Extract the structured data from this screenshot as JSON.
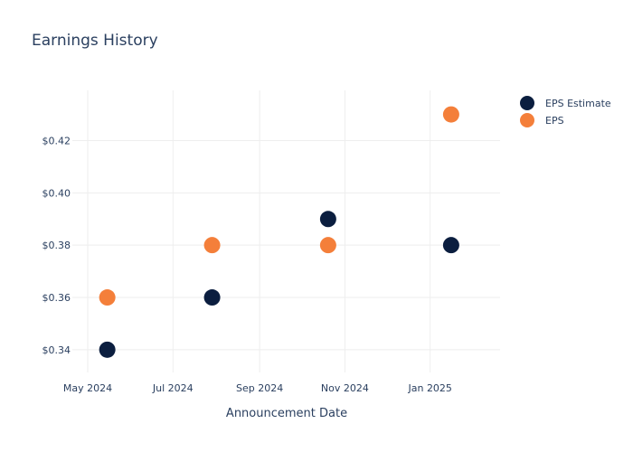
{
  "chart_data": {
    "type": "scatter",
    "title": "Earnings History",
    "xlabel": "Announcement Date",
    "ylabel": "",
    "x_ticks": [
      {
        "date": "2024-05-01",
        "label": "May 2024"
      },
      {
        "date": "2024-07-01",
        "label": "Jul 2024"
      },
      {
        "date": "2024-09-01",
        "label": "Sep 2024"
      },
      {
        "date": "2024-11-01",
        "label": "Nov 2024"
      },
      {
        "date": "2025-01-01",
        "label": "Jan 2025"
      }
    ],
    "y_ticks": [
      {
        "value": 0.34,
        "label": "$0.34"
      },
      {
        "value": 0.36,
        "label": "$0.36"
      },
      {
        "value": 0.38,
        "label": "$0.38"
      },
      {
        "value": 0.4,
        "label": "$0.40"
      },
      {
        "value": 0.42,
        "label": "$0.42"
      }
    ],
    "xlim": [
      "2024-04-20",
      "2025-02-20"
    ],
    "ylim": [
      0.3313,
      0.4392
    ],
    "grid": true,
    "legend_position": "top-right",
    "series": [
      {
        "name": "EPS Estimate",
        "color": "#0b1e3f",
        "points": [
          {
            "x": "2024-05-15",
            "y": 0.34
          },
          {
            "x": "2024-07-29",
            "y": 0.36
          },
          {
            "x": "2024-10-20",
            "y": 0.39
          },
          {
            "x": "2025-01-16",
            "y": 0.38
          }
        ]
      },
      {
        "name": "EPS",
        "color": "#f47f3a",
        "points": [
          {
            "x": "2024-05-15",
            "y": 0.36
          },
          {
            "x": "2024-07-29",
            "y": 0.38
          },
          {
            "x": "2024-10-20",
            "y": 0.38
          },
          {
            "x": "2025-01-16",
            "y": 0.43
          }
        ]
      }
    ]
  }
}
